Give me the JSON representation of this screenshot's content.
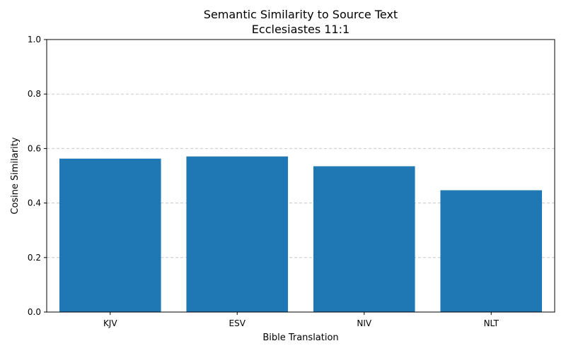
{
  "chart_data": {
    "type": "bar",
    "title": "Semantic Similarity to Source Text",
    "subtitle": "Ecclesiastes 11:1",
    "xlabel": "Bible Translation",
    "ylabel": "Cosine Similarity",
    "categories": [
      "KJV",
      "ESV",
      "NIV",
      "NLT"
    ],
    "values": [
      0.563,
      0.571,
      0.535,
      0.447
    ],
    "ylim": [
      0,
      1.0
    ],
    "yticks": [
      "0.0",
      "0.2",
      "0.4",
      "0.6",
      "0.8",
      "1.0"
    ],
    "grid": "y-dashed",
    "bar_color": "#1f77b4",
    "grid_color": "#c8c8c8"
  }
}
